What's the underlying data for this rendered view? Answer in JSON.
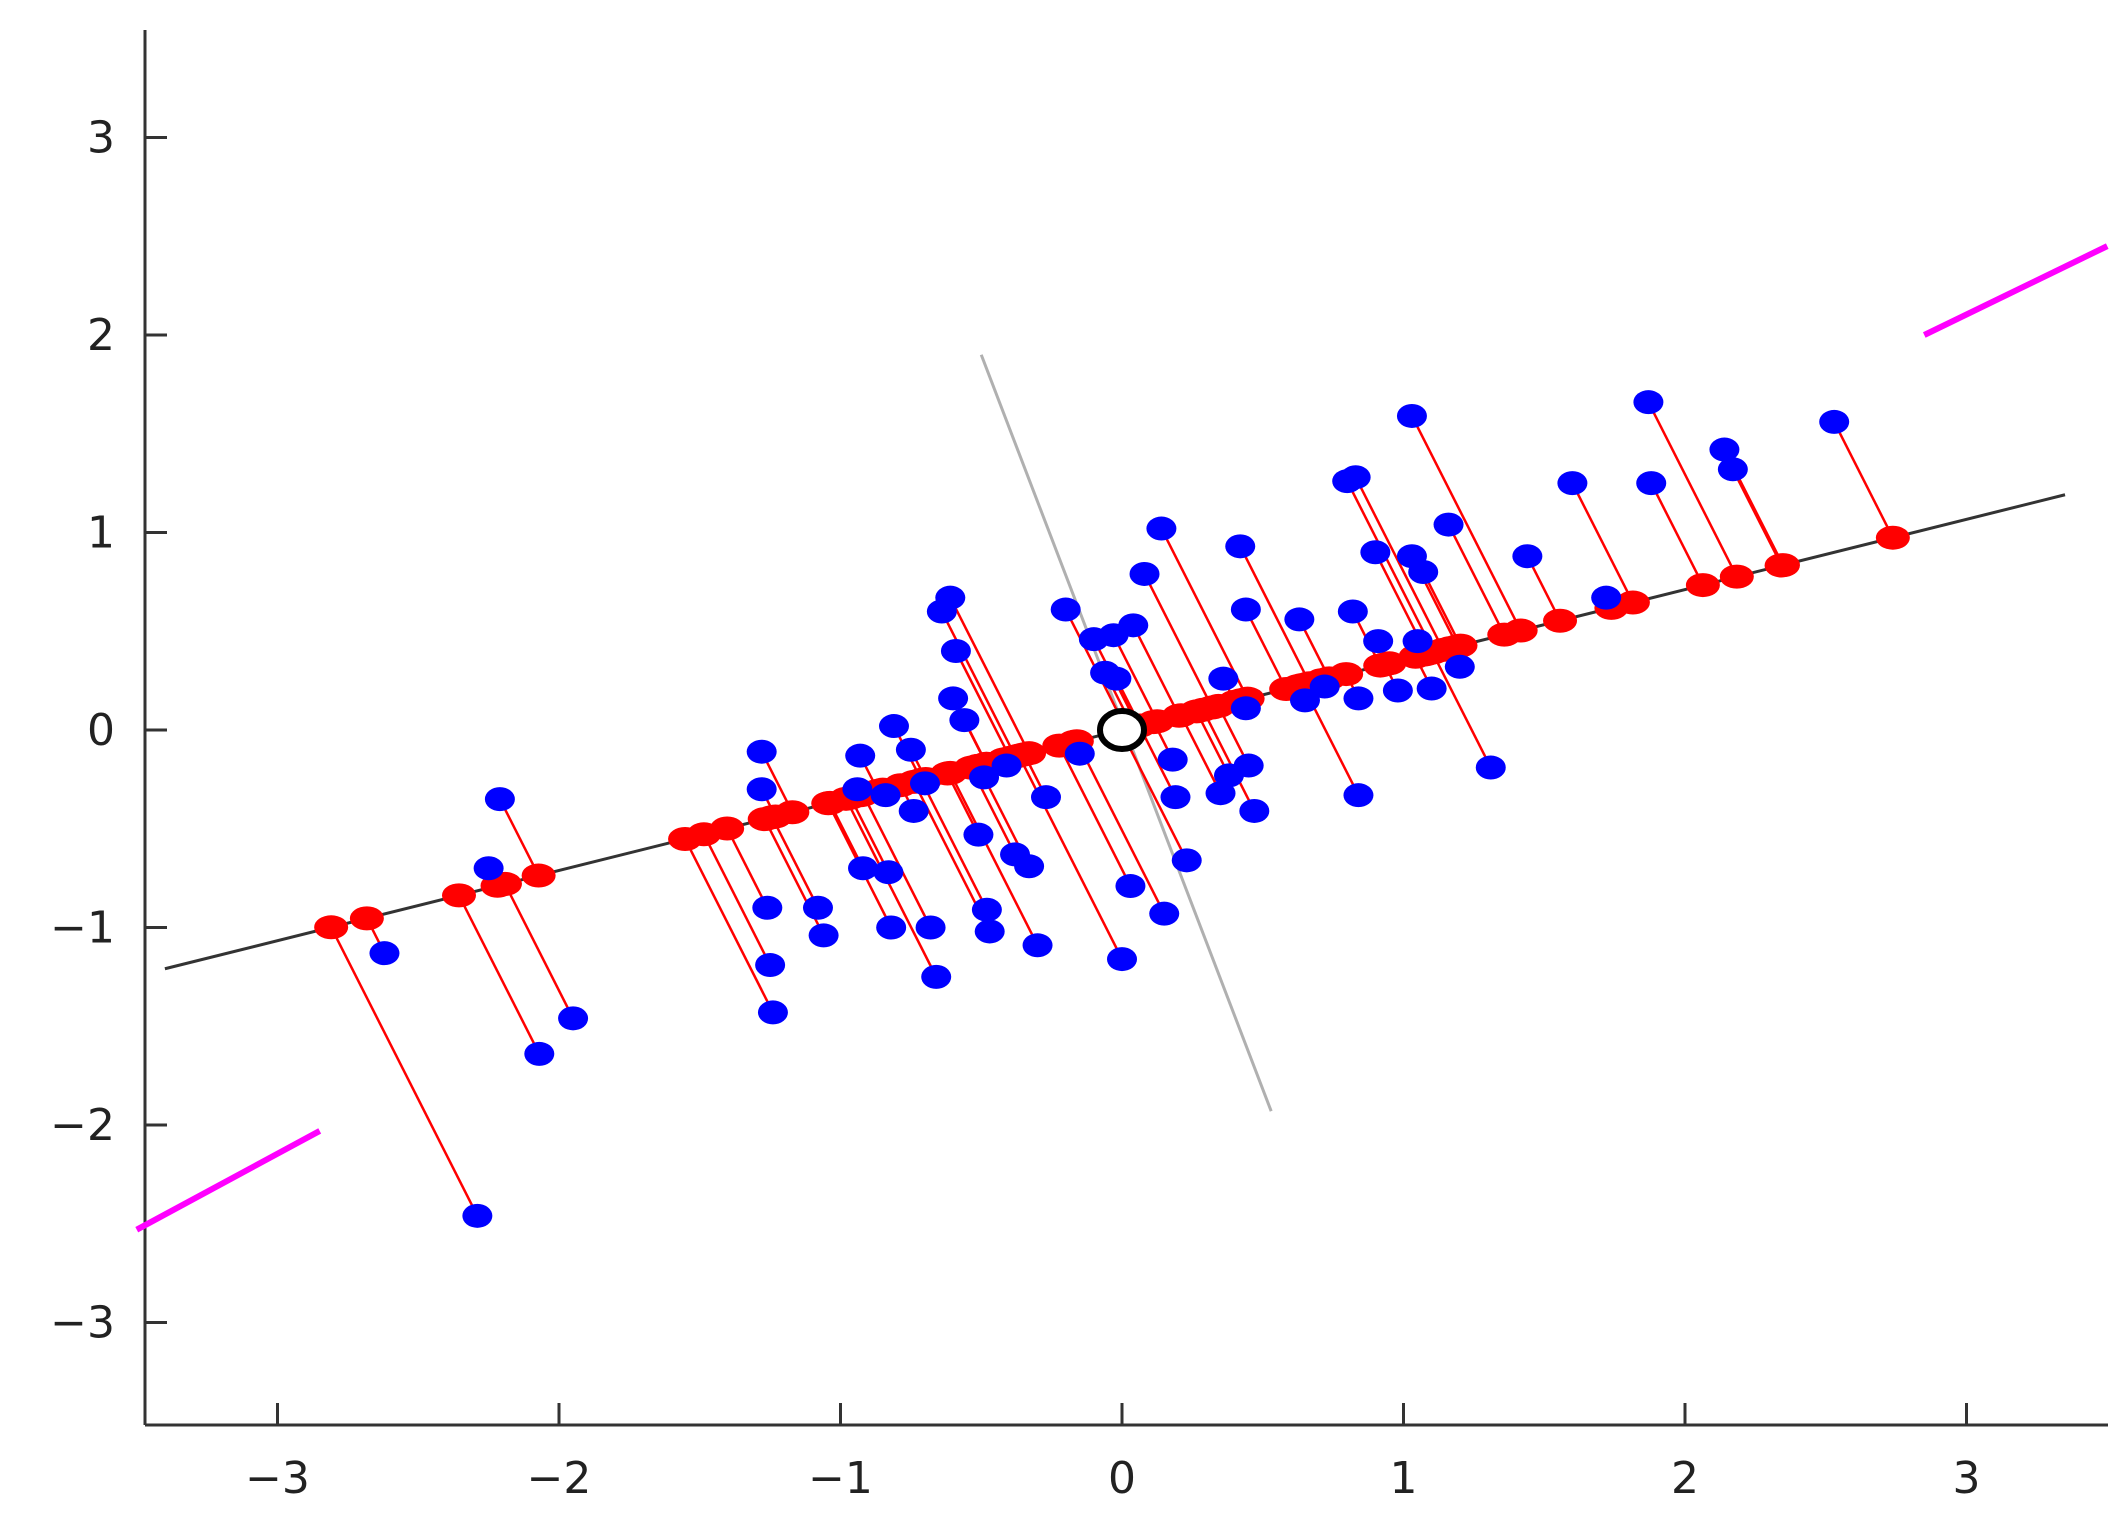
{
  "chart_data": {
    "type": "scatter",
    "title": "",
    "xlabel": "",
    "ylabel": "",
    "xlim": [
      -3.5,
      3.5
    ],
    "ylim": [
      -3.5,
      3.5
    ],
    "x_ticks": [
      -3,
      -2,
      -1,
      0,
      1,
      2,
      3
    ],
    "y_ticks": [
      -3,
      -2,
      -1,
      0,
      1,
      2,
      3
    ],
    "x_tick_labels": [
      "−3",
      "−2",
      "−1",
      "0",
      "1",
      "2",
      "3"
    ],
    "y_tick_labels": [
      "−3",
      "−2",
      "−1",
      "0",
      "1",
      "2",
      "3"
    ],
    "grid": false,
    "legend": "none",
    "colors": {
      "data_points": "#0000ff",
      "projected_points": "#ff0000",
      "projection_lines": "#ff0000",
      "principal_axis": "#333333",
      "orthogonal_axis": "#b0b0b0",
      "magenta_segments": "#ff00ff",
      "mean_marker": "#000000"
    },
    "principal_axis": {
      "direction": [
        0.9422,
        0.335
      ],
      "x_range": [
        -3.4,
        3.35
      ]
    },
    "orthogonal_axis": {
      "from": [
        -0.5,
        1.9
      ],
      "to": [
        0.53,
        -1.93
      ]
    },
    "magenta_segments": [
      {
        "from": [
          -3.5,
          -2.53
        ],
        "to": [
          -2.85,
          -2.03
        ]
      },
      {
        "from": [
          2.85,
          2.0
        ],
        "to": [
          3.5,
          2.45
        ]
      }
    ],
    "mean_point": [
      0,
      0
    ],
    "points": [
      [
        -2.62,
        -1.13
      ],
      [
        -2.29,
        -2.46
      ],
      [
        -2.21,
        -0.35
      ],
      [
        -2.25,
        -0.7
      ],
      [
        -2.07,
        -1.64
      ],
      [
        -1.95,
        -1.46
      ],
      [
        -1.28,
        -0.11
      ],
      [
        -1.28,
        -0.3
      ],
      [
        -1.26,
        -0.9
      ],
      [
        -1.25,
        -1.19
      ],
      [
        -1.24,
        -1.43
      ],
      [
        -1.08,
        -0.9
      ],
      [
        -1.06,
        -1.04
      ],
      [
        -0.93,
        -0.13
      ],
      [
        -0.94,
        -0.3
      ],
      [
        -0.92,
        -0.7
      ],
      [
        -0.81,
        0.02
      ],
      [
        -0.84,
        -0.33
      ],
      [
        -0.83,
        -0.72
      ],
      [
        -0.82,
        -1.0
      ],
      [
        -0.75,
        -0.1
      ],
      [
        -0.74,
        -0.41
      ],
      [
        -0.7,
        -0.27
      ],
      [
        -0.68,
        -1.0
      ],
      [
        -0.66,
        -1.25
      ],
      [
        -0.64,
        0.6
      ],
      [
        -0.61,
        0.67
      ],
      [
        -0.59,
        0.4
      ],
      [
        -0.6,
        0.16
      ],
      [
        -0.56,
        0.05
      ],
      [
        -0.51,
        -0.53
      ],
      [
        -0.48,
        -0.91
      ],
      [
        -0.47,
        -1.02
      ],
      [
        -0.49,
        -0.24
      ],
      [
        -0.41,
        -0.18
      ],
      [
        -0.38,
        -0.63
      ],
      [
        -0.33,
        -0.69
      ],
      [
        -0.3,
        -1.09
      ],
      [
        -0.27,
        -0.34
      ],
      [
        -0.2,
        0.61
      ],
      [
        -0.15,
        -0.12
      ],
      [
        -0.1,
        0.46
      ],
      [
        -0.06,
        0.29
      ],
      [
        -0.02,
        0.26
      ],
      [
        -0.03,
        0.48
      ],
      [
        0.0,
        -1.16
      ],
      [
        0.03,
        -0.79
      ],
      [
        0.04,
        0.53
      ],
      [
        0.08,
        0.79
      ],
      [
        0.14,
        1.02
      ],
      [
        0.15,
        -0.93
      ],
      [
        0.18,
        -0.15
      ],
      [
        0.19,
        -0.34
      ],
      [
        0.23,
        -0.66
      ],
      [
        0.36,
        0.26
      ],
      [
        0.35,
        -0.32
      ],
      [
        0.38,
        -0.23
      ],
      [
        0.42,
        0.93
      ],
      [
        0.44,
        0.61
      ],
      [
        0.44,
        0.11
      ],
      [
        0.45,
        -0.18
      ],
      [
        0.47,
        -0.41
      ],
      [
        0.63,
        0.56
      ],
      [
        0.65,
        0.15
      ],
      [
        0.72,
        0.22
      ],
      [
        0.8,
        1.26
      ],
      [
        0.83,
        1.28
      ],
      [
        0.82,
        0.6
      ],
      [
        0.84,
        0.16
      ],
      [
        0.84,
        -0.33
      ],
      [
        0.9,
        0.9
      ],
      [
        0.91,
        0.45
      ],
      [
        0.98,
        0.2
      ],
      [
        1.03,
        1.59
      ],
      [
        1.03,
        0.88
      ],
      [
        1.05,
        0.45
      ],
      [
        1.07,
        0.8
      ],
      [
        1.1,
        0.21
      ],
      [
        1.16,
        1.04
      ],
      [
        1.2,
        0.32
      ],
      [
        1.31,
        -0.19
      ],
      [
        1.44,
        0.88
      ],
      [
        1.6,
        1.25
      ],
      [
        1.72,
        0.67
      ],
      [
        1.87,
        1.66
      ],
      [
        1.88,
        1.25
      ],
      [
        2.14,
        1.42
      ],
      [
        2.17,
        1.32
      ],
      [
        2.53,
        1.56
      ]
    ]
  }
}
